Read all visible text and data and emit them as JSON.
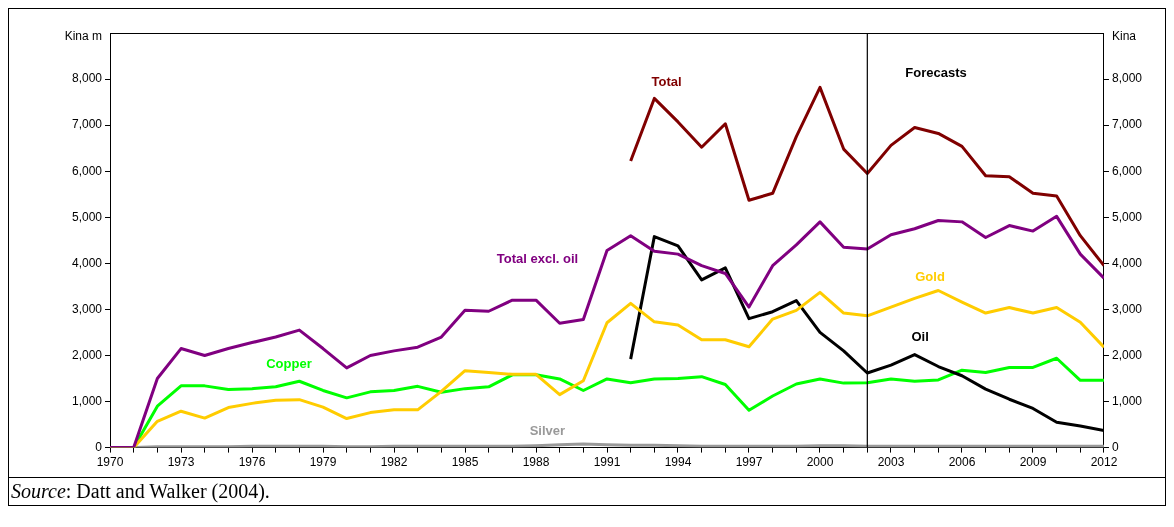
{
  "chart_data": {
    "type": "line",
    "ylabel": "Kina m",
    "y2label": "Kina",
    "x": [
      1970,
      1971,
      1972,
      1973,
      1974,
      1975,
      1976,
      1977,
      1978,
      1979,
      1980,
      1981,
      1982,
      1983,
      1984,
      1985,
      1986,
      1987,
      1988,
      1989,
      1990,
      1991,
      1992,
      1993,
      1994,
      1995,
      1996,
      1997,
      1998,
      1999,
      2000,
      2001,
      2002,
      2003,
      2004,
      2005,
      2006,
      2007,
      2008,
      2009,
      2010,
      2011,
      2012
    ],
    "series": [
      {
        "name": "Total",
        "color": "#800000",
        "values": [
          null,
          null,
          null,
          null,
          null,
          null,
          null,
          null,
          null,
          null,
          null,
          null,
          null,
          null,
          null,
          null,
          null,
          null,
          null,
          null,
          null,
          null,
          6220,
          7580,
          7070,
          6520,
          7030,
          5370,
          5520,
          6750,
          7820,
          6480,
          5950,
          6560,
          6950,
          6820,
          6540,
          5900,
          5880,
          5520,
          5460,
          4600,
          3950
        ]
      },
      {
        "name": "Total excl. oil",
        "color": "#800080",
        "values": [
          0,
          0,
          1500,
          2150,
          2000,
          2150,
          2280,
          2400,
          2550,
          2150,
          1730,
          2000,
          2100,
          2180,
          2400,
          2980,
          2960,
          3200,
          3200,
          2700,
          2780,
          4280,
          4600,
          4260,
          4200,
          3950,
          3780,
          3050,
          3950,
          4400,
          4900,
          4350,
          4310,
          4620,
          4750,
          4930,
          4900,
          4560,
          4820,
          4700,
          5020,
          4200,
          3680
        ]
      },
      {
        "name": "Gold",
        "color": "#ffcc00",
        "values": [
          0,
          0,
          570,
          790,
          640,
          870,
          960,
          1030,
          1040,
          880,
          630,
          760,
          820,
          820,
          1220,
          1670,
          1630,
          1590,
          1590,
          1150,
          1450,
          2710,
          3130,
          2730,
          2660,
          2340,
          2340,
          2190,
          2790,
          2980,
          3370,
          2920,
          2860,
          3050,
          3240,
          3410,
          3160,
          2920,
          3040,
          2920,
          3040,
          2720,
          2180
        ]
      },
      {
        "name": "Oil",
        "color": "#000000",
        "values": [
          null,
          null,
          null,
          null,
          null,
          null,
          null,
          null,
          null,
          null,
          null,
          null,
          null,
          null,
          null,
          null,
          null,
          null,
          null,
          null,
          null,
          null,
          1920,
          4580,
          4380,
          3640,
          3900,
          2800,
          2950,
          3190,
          2500,
          2100,
          1620,
          1790,
          2020,
          1760,
          1560,
          1270,
          1050,
          850,
          550,
          470,
          370
        ]
      },
      {
        "name": "Copper",
        "color": "#00ff00",
        "values": [
          0,
          0,
          900,
          1340,
          1340,
          1260,
          1280,
          1320,
          1440,
          1240,
          1080,
          1210,
          1240,
          1330,
          1200,
          1280,
          1320,
          1580,
          1580,
          1490,
          1240,
          1490,
          1410,
          1490,
          1500,
          1540,
          1370,
          810,
          1120,
          1380,
          1490,
          1400,
          1410,
          1490,
          1440,
          1470,
          1680,
          1630,
          1740,
          1740,
          1940,
          1460,
          1460
        ]
      },
      {
        "name": "Silver",
        "color": "#999999",
        "values": [
          0,
          0,
          20,
          20,
          20,
          20,
          30,
          30,
          30,
          30,
          20,
          20,
          30,
          30,
          30,
          30,
          30,
          30,
          40,
          60,
          80,
          60,
          50,
          50,
          40,
          30,
          30,
          30,
          30,
          30,
          40,
          40,
          30,
          30,
          30,
          30,
          30,
          30,
          30,
          30,
          30,
          30,
          30
        ]
      }
    ],
    "xlim": [
      1970,
      2012
    ],
    "xticks": [
      1970,
      {
        "value": 1971,
        "label": null
      },
      {
        "value": 1972,
        "label": null
      },
      1973,
      {
        "value": 1974,
        "label": null
      },
      {
        "value": 1975,
        "label": null
      },
      1976,
      {
        "value": 1977,
        "label": null
      },
      {
        "value": 1978,
        "label": null
      },
      1979,
      {
        "value": 1980,
        "label": null
      },
      {
        "value": 1981,
        "label": null
      },
      1982,
      {
        "value": 1983,
        "label": null
      },
      {
        "value": 1984,
        "label": null
      },
      1985,
      {
        "value": 1986,
        "label": null
      },
      {
        "value": 1987,
        "label": null
      },
      1988,
      {
        "value": 1989,
        "label": null
      },
      {
        "value": 1990,
        "label": null
      },
      1991,
      {
        "value": 1992,
        "label": null
      },
      {
        "value": 1993,
        "label": null
      },
      1994,
      {
        "value": 1995,
        "label": null
      },
      {
        "value": 1996,
        "label": null
      },
      1997,
      {
        "value": 1998,
        "label": null
      },
      {
        "value": 1999,
        "label": null
      },
      2000,
      {
        "value": 2001,
        "label": null
      },
      {
        "value": 2002,
        "label": null
      },
      2003,
      {
        "value": 2004,
        "label": null
      },
      {
        "value": 2005,
        "label": null
      },
      2006,
      {
        "value": 2007,
        "label": null
      },
      {
        "value": 2008,
        "label": null
      },
      2009,
      {
        "value": 2010,
        "label": null
      },
      {
        "value": 2011,
        "label": null
      },
      2012
    ],
    "ylim": [
      0,
      9000
    ],
    "yticks": [
      0,
      {
        "value": 1000,
        "label": "1,000"
      },
      {
        "value": 2000,
        "label": "2,000"
      },
      {
        "value": 3000,
        "label": "3,000"
      },
      {
        "value": 4000,
        "label": "4,000"
      },
      {
        "value": 5000,
        "label": "5,000"
      },
      {
        "value": 6000,
        "label": "6,000"
      },
      {
        "value": 7000,
        "label": "7,000"
      },
      {
        "value": 8000,
        "label": "8,000"
      }
    ],
    "y2lim": [
      0,
      9000
    ],
    "y2ticks": [
      0,
      {
        "value": 1000,
        "label": "1,000"
      },
      {
        "value": 2000,
        "label": "2,000"
      },
      {
        "value": 3000,
        "label": "3,000"
      },
      {
        "value": 4000,
        "label": "4,000"
      },
      {
        "value": 5000,
        "label": "5,000"
      },
      {
        "value": 6000,
        "label": "6,000"
      },
      {
        "value": 7000,
        "label": "7,000"
      },
      {
        "value": 8000,
        "label": "8,000"
      }
    ],
    "ref_lines": [
      {
        "axis": "x",
        "value": 2002,
        "label": "Forecasts",
        "color": "#000000"
      }
    ],
    "legend": false,
    "grid": false,
    "marker": "none",
    "line_style": "solid",
    "annotations": [
      "Source: Datt and Walker (2004)."
    ]
  }
}
